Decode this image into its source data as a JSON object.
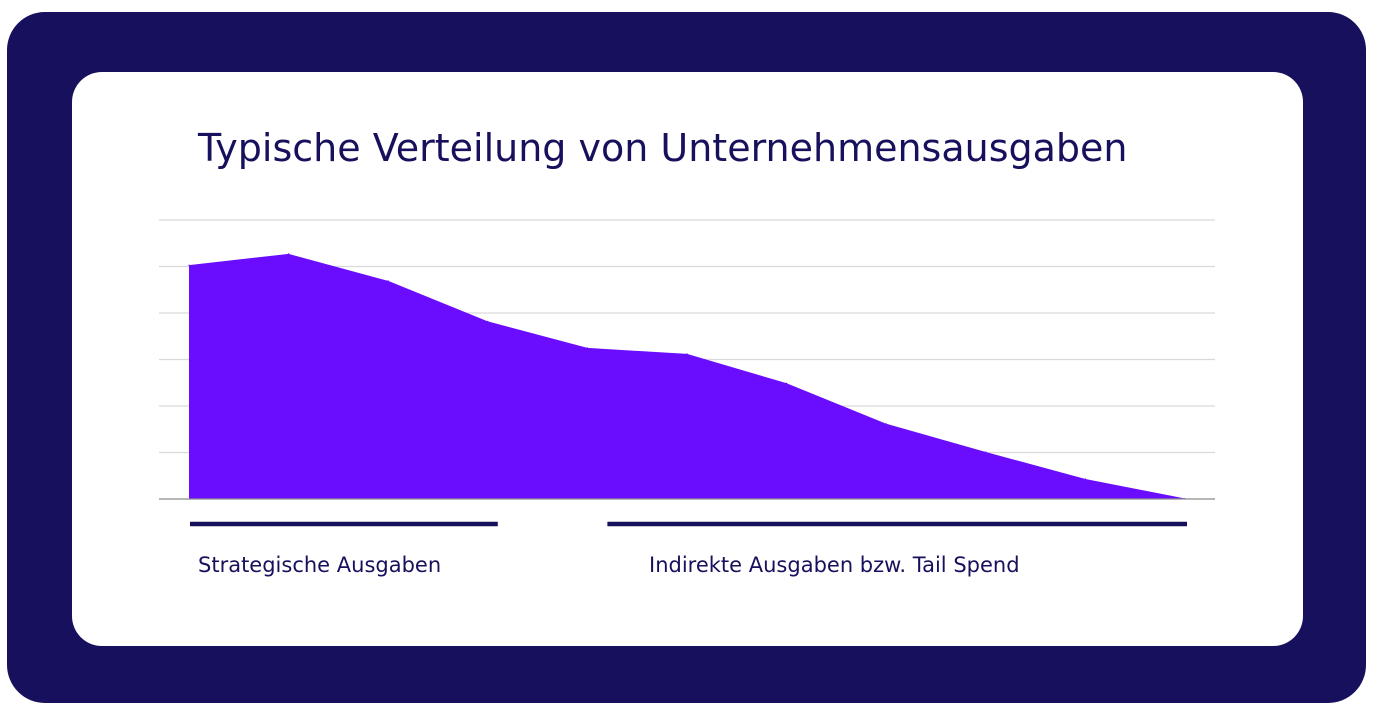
{
  "colors": {
    "frame": "#17105c",
    "card": "#ffffff",
    "area": "#6a0dff",
    "gridline": "#d9d9d9",
    "text": "#17105c"
  },
  "chart_data": {
    "type": "area",
    "title": "Typische Verteilung von Unternehmensausgaben",
    "xlabel": "",
    "ylabel": "",
    "y_tick_labels_shown": false,
    "x_tick_labels_shown": false,
    "grid": true,
    "gridline_count": 6,
    "ylim": [
      0,
      6
    ],
    "series": [
      {
        "values": [
          5.03,
          5.27,
          4.69,
          3.82,
          3.25,
          3.12,
          2.49,
          1.62,
          1.01,
          0.43,
          0.01
        ]
      }
    ],
    "segments": [
      {
        "label": "Strategische Ausgaben",
        "from_index": 0,
        "to_index": 3
      },
      {
        "label": "Indirekte Ausgaben bzw. Tail Spend",
        "from_index": 4,
        "to_index": 10
      }
    ]
  }
}
